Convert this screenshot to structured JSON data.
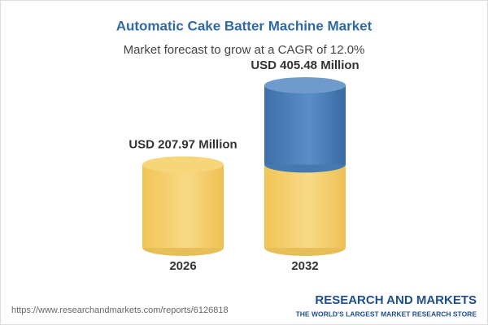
{
  "chart_data": {
    "type": "cylinder",
    "title": "Automatic Cake Batter Machine Market",
    "subtitle": "Market forecast to grow at a CAGR of 12.0%",
    "categories": [
      "2026",
      "2032"
    ],
    "values": [
      207.97,
      405.48
    ],
    "value_labels": [
      "USD 207.97 Million",
      "USD 405.48 Million"
    ],
    "colors": {
      "base": "#f3c95e",
      "growth": "#4a7fb8"
    },
    "source": "https://www.researchandmarkets.com/reports/6126818",
    "brand": {
      "name": "RESEARCH AND MARKETS",
      "tagline": "THE WORLD'S LARGEST MARKET RESEARCH STORE"
    }
  }
}
